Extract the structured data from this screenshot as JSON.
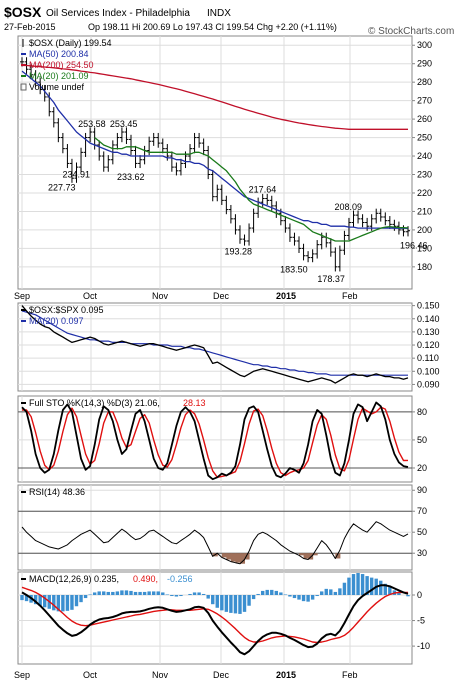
{
  "header": {
    "symbol": "$OSX",
    "name": "Oil Services Index - Philadelphia",
    "exchange": "INDX",
    "date": "27-Feb-2015",
    "quote": "Op 198.11 Hi 200.69 Lo 197.43 Cl 199.54 Chg +2.20 (+1.11%)",
    "watermark": "© StockCharts.com"
  },
  "colors": {
    "price": "#000000",
    "ma50": "#1f2fa8",
    "ma200": "#c0102a",
    "ma20": "#1a7a1a",
    "signal": "#e01010",
    "histogram": "#3b8fd0",
    "rsi_fill": "#a0705a"
  },
  "chart_data": [
    {
      "type": "line",
      "title": "$OSX (Daily) 199.54",
      "legend": [
        {
          "label": "$OSX (Daily) 199.54",
          "key": "price",
          "marker": "ohlc-bar"
        },
        {
          "label": "MA(50) 200.84",
          "key": "ma50"
        },
        {
          "label": "MA(200) 254.50",
          "key": "ma200"
        },
        {
          "label": "MA(20) 201.09",
          "key": "ma20"
        },
        {
          "label": "Volume undef",
          "key": "volume",
          "marker": "box"
        }
      ],
      "ylim": [
        168,
        305
      ],
      "yticks": [
        180,
        190,
        200,
        210,
        220,
        230,
        240,
        250,
        260,
        270,
        280,
        290,
        300
      ],
      "price_closes": [
        291,
        287,
        284,
        280,
        276,
        272,
        264,
        258,
        250,
        244,
        236,
        228,
        234,
        242,
        250,
        253,
        246,
        240,
        234,
        238,
        246,
        250,
        253,
        249,
        243,
        236,
        238,
        243,
        248,
        250,
        247,
        244,
        240,
        234,
        232,
        236,
        240,
        244,
        250,
        247,
        243,
        230,
        218,
        222,
        216,
        211,
        206,
        200,
        195,
        194,
        201,
        209,
        215,
        217,
        216,
        213,
        209,
        205,
        201,
        196,
        194,
        190,
        186,
        185,
        187,
        192,
        196,
        193,
        188,
        180,
        189,
        197,
        204,
        208,
        206,
        204,
        202,
        206,
        209,
        207,
        205,
        203,
        202,
        200,
        199,
        199.54
      ],
      "ma50": [
        286,
        284,
        282,
        280,
        278,
        275,
        272,
        269,
        265,
        262,
        259,
        256,
        253,
        251,
        249,
        247,
        246,
        245,
        244,
        243,
        242,
        242,
        241,
        241,
        240,
        240,
        240,
        240,
        240,
        240,
        240,
        240,
        239,
        239,
        238,
        238,
        237,
        237,
        236,
        236,
        235,
        233,
        232,
        230,
        228,
        226,
        224,
        222,
        220,
        218,
        217,
        216,
        215,
        214,
        213,
        212,
        211,
        210,
        209,
        208,
        207,
        206,
        205,
        205,
        204,
        204,
        203,
        203,
        202,
        202,
        202,
        202,
        201.5,
        201.5,
        201,
        201,
        201,
        201,
        201,
        201,
        201,
        201,
        200.9,
        200.9,
        200.9,
        200.84
      ],
      "ma200": [
        289,
        289,
        288.8,
        288.6,
        288.4,
        288.2,
        288,
        287.8,
        287.5,
        287.2,
        287,
        286.7,
        286.4,
        286,
        285.7,
        285.3,
        285,
        284.6,
        284.2,
        283.8,
        283.4,
        283,
        282.6,
        282.2,
        281.8,
        281.3,
        280.8,
        280.3,
        279.8,
        279.3,
        278.8,
        278.2,
        277.6,
        277,
        276.4,
        275.8,
        275.1,
        274.4,
        273.7,
        273,
        272.3,
        271.6,
        270.9,
        270.1,
        269.3,
        268.5,
        267.7,
        266.9,
        266.1,
        265.3,
        264.6,
        263.9,
        263.2,
        262.5,
        261.8,
        261.1,
        260.5,
        259.9,
        259.4,
        258.9,
        258.4,
        257.9,
        257.5,
        257.1,
        256.7,
        256.3,
        256,
        255.7,
        255.4,
        255.1,
        254.9,
        254.7,
        254.5,
        254.5,
        254.5,
        254.5,
        254.5,
        254.5,
        254.5,
        254.5,
        254.5,
        254.5,
        254.5,
        254.5,
        254.5,
        254.5
      ],
      "ma20": [
        null,
        null,
        null,
        null,
        null,
        null,
        null,
        null,
        null,
        null,
        null,
        null,
        null,
        null,
        null,
        null,
        250,
        248,
        246,
        245,
        244,
        244,
        244,
        245,
        245,
        245,
        244,
        243,
        242,
        242,
        242,
        242,
        242,
        242,
        241,
        241,
        241,
        241,
        242,
        242,
        241,
        240,
        238,
        236,
        234,
        232,
        229,
        226,
        222,
        219,
        216,
        214,
        213,
        212,
        211,
        210,
        209,
        208,
        207,
        206,
        205,
        204,
        203,
        201,
        199,
        198,
        197,
        196,
        195,
        194,
        194,
        194,
        194,
        195,
        196,
        197,
        198,
        199,
        200,
        201,
        201.5,
        201.8,
        201.5,
        201.3,
        201.2,
        201.09
      ],
      "annotations": [
        {
          "label": "253.58",
          "value": 253.58
        },
        {
          "label": "253.45",
          "value": 253.45
        },
        {
          "label": "234.91",
          "value": 234.91
        },
        {
          "label": "233.62",
          "value": 233.62
        },
        {
          "label": "227.73",
          "value": 227.73
        },
        {
          "label": "217.64",
          "value": 217.64
        },
        {
          "label": "193.28",
          "value": 193.28
        },
        {
          "label": "208.09",
          "value": 208.09
        },
        {
          "label": "196.46",
          "value": 196.46
        },
        {
          "label": "183.50",
          "value": 183.5
        },
        {
          "label": "178.37",
          "value": 178.37
        }
      ],
      "xticks": [
        "Sep",
        "Oct",
        "Nov",
        "Dec",
        "2015",
        "Feb"
      ]
    },
    {
      "type": "line",
      "title": "$OSX:$SPX 0.095",
      "legend": [
        {
          "label": "$OSX:$SPX 0.095",
          "key": "price"
        },
        {
          "label": "MA(20) 0.097",
          "key": "ma50"
        }
      ],
      "ylim": [
        0.085,
        0.152
      ],
      "yticks": [
        0.09,
        0.1,
        0.11,
        0.12,
        0.13,
        0.14,
        0.15
      ],
      "ytick_labels": [
        "0.090",
        "0.100",
        "0.110",
        "0.120",
        "0.130",
        "0.140",
        "0.150"
      ],
      "ratio": [
        0.15,
        0.146,
        0.142,
        0.139,
        0.136,
        0.134,
        0.133,
        0.13,
        0.128,
        0.126,
        0.124,
        0.122,
        0.123,
        0.124,
        0.125,
        0.126,
        0.125,
        0.123,
        0.121,
        0.12,
        0.121,
        0.122,
        0.123,
        0.122,
        0.121,
        0.12,
        0.119,
        0.12,
        0.121,
        0.121,
        0.12,
        0.119,
        0.118,
        0.117,
        0.116,
        0.117,
        0.118,
        0.119,
        0.12,
        0.119,
        0.118,
        0.112,
        0.106,
        0.107,
        0.105,
        0.103,
        0.101,
        0.099,
        0.097,
        0.096,
        0.098,
        0.1,
        0.101,
        0.102,
        0.101,
        0.1,
        0.099,
        0.098,
        0.097,
        0.096,
        0.095,
        0.094,
        0.093,
        0.092,
        0.093,
        0.094,
        0.095,
        0.094,
        0.093,
        0.091,
        0.093,
        0.095,
        0.097,
        0.098,
        0.097,
        0.097,
        0.096,
        0.097,
        0.098,
        0.097,
        0.096,
        0.096,
        0.095,
        0.095,
        0.094,
        0.095
      ],
      "ma20": [
        0.146,
        0.145,
        0.144,
        0.143,
        0.141,
        0.139,
        0.137,
        0.135,
        0.133,
        0.131,
        0.129,
        0.128,
        0.127,
        0.126,
        0.125,
        0.124,
        0.124,
        0.123,
        0.123,
        0.123,
        0.122,
        0.122,
        0.122,
        0.122,
        0.121,
        0.121,
        0.121,
        0.121,
        0.121,
        0.12,
        0.12,
        0.12,
        0.12,
        0.119,
        0.119,
        0.119,
        0.118,
        0.118,
        0.117,
        0.117,
        0.116,
        0.115,
        0.114,
        0.113,
        0.112,
        0.111,
        0.11,
        0.109,
        0.108,
        0.107,
        0.106,
        0.105,
        0.105,
        0.104,
        0.104,
        0.103,
        0.103,
        0.102,
        0.102,
        0.101,
        0.101,
        0.1,
        0.1,
        0.099,
        0.099,
        0.098,
        0.098,
        0.098,
        0.097,
        0.097,
        0.097,
        0.097,
        0.097,
        0.097,
        0.097,
        0.097,
        0.097,
        0.097,
        0.097,
        0.097,
        0.097,
        0.097,
        0.097,
        0.097,
        0.097,
        0.097
      ]
    },
    {
      "type": "line",
      "title": "Full STO %K(14,3) %D(3) 21.06, 28.13",
      "legend": [
        {
          "label": "Full STO %K(14,3) %D(3) 21.06,",
          "key": "price"
        },
        {
          "label": "28.13",
          "key": "signal"
        }
      ],
      "ylim": [
        5,
        97
      ],
      "yticks": [
        20,
        50,
        80
      ],
      "reference_lines": [
        20,
        80
      ],
      "k": [
        85,
        80,
        60,
        35,
        20,
        15,
        18,
        35,
        60,
        82,
        88,
        80,
        55,
        30,
        18,
        22,
        45,
        72,
        86,
        82,
        70,
        50,
        35,
        40,
        60,
        78,
        82,
        70,
        50,
        30,
        20,
        18,
        25,
        45,
        65,
        80,
        85,
        80,
        70,
        50,
        30,
        12,
        8,
        10,
        14,
        12,
        15,
        22,
        45,
        72,
        84,
        86,
        80,
        60,
        40,
        22,
        12,
        10,
        14,
        20,
        18,
        15,
        25,
        45,
        70,
        82,
        78,
        55,
        30,
        15,
        12,
        25,
        50,
        78,
        88,
        85,
        70,
        80,
        90,
        86,
        72,
        50,
        35,
        26,
        22,
        21.06
      ],
      "d": [
        82,
        82,
        75,
        58,
        38,
        23,
        18,
        23,
        38,
        59,
        77,
        84,
        75,
        55,
        35,
        24,
        28,
        46,
        68,
        80,
        80,
        68,
        52,
        42,
        45,
        59,
        73,
        77,
        68,
        50,
        34,
        23,
        21,
        29,
        45,
        63,
        77,
        82,
        78,
        67,
        50,
        31,
        17,
        10,
        11,
        12,
        14,
        16,
        27,
        46,
        67,
        81,
        83,
        76,
        60,
        41,
        25,
        15,
        12,
        15,
        17,
        18,
        20,
        28,
        47,
        66,
        77,
        72,
        55,
        34,
        19,
        17,
        29,
        51,
        72,
        84,
        81,
        78,
        80,
        85,
        83,
        70,
        52,
        37,
        28,
        28.13
      ]
    },
    {
      "type": "line",
      "title": "RSI(14) 48.36",
      "legend": [
        {
          "label": "RSI(14) 48.36",
          "key": "price"
        }
      ],
      "ylim": [
        14,
        95
      ],
      "yticks": [
        30,
        50,
        70,
        90
      ],
      "reference_lines": [
        30,
        70
      ],
      "rsi": [
        55,
        50,
        46,
        42,
        40,
        38,
        36,
        35,
        34,
        36,
        38,
        42,
        45,
        48,
        50,
        52,
        48,
        44,
        40,
        41,
        45,
        49,
        53,
        50,
        46,
        43,
        44,
        47,
        51,
        52,
        49,
        46,
        43,
        40,
        39,
        42,
        45,
        48,
        52,
        49,
        45,
        36,
        27,
        30,
        26,
        24,
        22,
        21,
        20,
        24,
        32,
        42,
        48,
        50,
        48,
        45,
        42,
        38,
        35,
        32,
        30,
        28,
        25,
        24,
        28,
        35,
        42,
        38,
        32,
        25,
        33,
        44,
        52,
        58,
        55,
        52,
        50,
        55,
        60,
        58,
        55,
        52,
        50,
        48,
        46,
        48.36
      ]
    },
    {
      "type": "line",
      "title": "MACD(12,26,9) 0.235, 0.490, -0.256",
      "legend": [
        {
          "label": "MACD(12,26,9) 0.235,",
          "key": "price"
        },
        {
          "label": "0.490,",
          "key": "signal"
        },
        {
          "label": "-0.256",
          "key": "histogram"
        }
      ],
      "ylim": [
        -13.5,
        4.5
      ],
      "yticks": [
        -10,
        -5,
        0
      ],
      "macd": [
        0.5,
        0,
        -0.6,
        -1.3,
        -2.1,
        -3,
        -4,
        -5,
        -6,
        -6.8,
        -7.5,
        -8,
        -7.8,
        -7.3,
        -6.6,
        -5.8,
        -5.2,
        -4.8,
        -4.6,
        -4.5,
        -4.3,
        -4,
        -3.6,
        -3.4,
        -3.3,
        -3.3,
        -3.2,
        -3,
        -2.7,
        -2.5,
        -2.4,
        -2.5,
        -2.8,
        -3.1,
        -3.3,
        -3.2,
        -3,
        -2.8,
        -2.4,
        -2.3,
        -2.5,
        -3.5,
        -5,
        -6.2,
        -7.3,
        -8.3,
        -9.3,
        -10.2,
        -11.2,
        -11.6,
        -11,
        -10,
        -9,
        -8.2,
        -7.7,
        -7.4,
        -7.4,
        -7.6,
        -7.9,
        -8.4,
        -8.8,
        -9.3,
        -9.8,
        -10.2,
        -10.1,
        -9.5,
        -8.5,
        -7.8,
        -7.6,
        -7.9,
        -7,
        -5.5,
        -3.8,
        -2.2,
        -1,
        -0.2,
        0.4,
        1,
        1.6,
        1.9,
        1.9,
        1.7,
        1.3,
        0.9,
        0.5,
        0.235
      ],
      "signal": [
        1.5,
        1.2,
        0.9,
        0.5,
        0,
        -0.6,
        -1.3,
        -2,
        -2.8,
        -3.6,
        -4.4,
        -5.1,
        -5.6,
        -5.9,
        -6,
        -5.9,
        -5.7,
        -5.5,
        -5.3,
        -5.1,
        -4.9,
        -4.7,
        -4.5,
        -4.3,
        -4.1,
        -3.9,
        -3.8,
        -3.6,
        -3.4,
        -3.2,
        -3.1,
        -3,
        -2.9,
        -2.9,
        -3,
        -3,
        -3,
        -3,
        -2.9,
        -2.8,
        -2.7,
        -2.8,
        -3.2,
        -3.7,
        -4.3,
        -5,
        -5.8,
        -6.6,
        -7.5,
        -8.3,
        -8.9,
        -9.2,
        -9.2,
        -9,
        -8.7,
        -8.4,
        -8.2,
        -8.1,
        -8,
        -8.1,
        -8.2,
        -8.4,
        -8.6,
        -8.9,
        -9.2,
        -9.3,
        -9.2,
        -9,
        -8.7,
        -8.5,
        -8.3,
        -7.9,
        -7.2,
        -6.3,
        -5.3,
        -4.3,
        -3.3,
        -2.4,
        -1.6,
        -0.9,
        -0.3,
        0.1,
        0.4,
        0.5,
        0.5,
        0.49
      ],
      "histogram": [
        -1,
        -1.2,
        -1.5,
        -1.8,
        -2.1,
        -2.4,
        -2.7,
        -3,
        -3.2,
        -3.2,
        -3.1,
        -2.9,
        -2.2,
        -1.4,
        -0.6,
        0.1,
        0.5,
        0.7,
        0.7,
        0.6,
        0.6,
        0.7,
        0.9,
        0.9,
        0.8,
        0.6,
        0.6,
        0.6,
        0.7,
        0.7,
        0.7,
        0.5,
        0.1,
        -0.2,
        -0.3,
        -0.2,
        0,
        0.2,
        0.5,
        0.5,
        0.2,
        -0.7,
        -1.8,
        -2.5,
        -3,
        -3.3,
        -3.5,
        -3.6,
        -3.7,
        -3.3,
        -2.1,
        -0.8,
        0.2,
        0.8,
        1,
        1,
        0.8,
        0.5,
        0.1,
        -0.3,
        -0.6,
        -0.9,
        -1.2,
        -1.3,
        -0.9,
        -0.2,
        0.7,
        1.2,
        1.1,
        0.6,
        1.3,
        2.4,
        3.4,
        4.1,
        4.3,
        4.1,
        3.7,
        3.4,
        3.2,
        2.8,
        2.2,
        1.6,
        0.9,
        0.4,
        0,
        -0.256
      ]
    }
  ]
}
